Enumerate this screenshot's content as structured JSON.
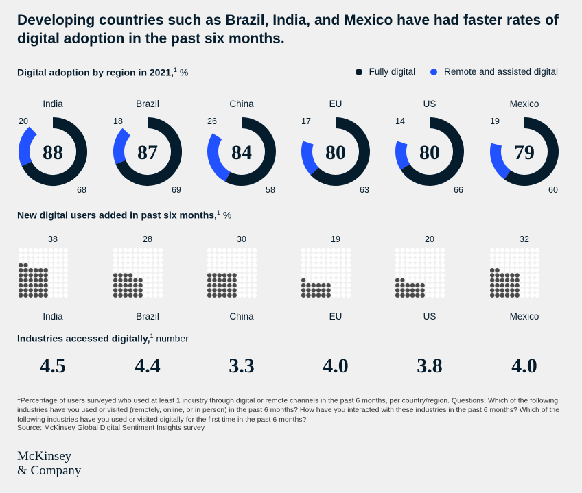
{
  "title": "Developing countries such as Brazil, India, and Mexico have had faster rates of digital adoption in the past six months.",
  "legend": {
    "fully_digital": "Fully digital",
    "remote_assisted": "Remote and assisted digital"
  },
  "colors": {
    "fully_digital": "#051c2c",
    "remote_assisted": "#2251ff",
    "dot_empty": "#ffffff",
    "dot_filled": "#4a4a4a"
  },
  "section1": {
    "label": "Digital adoption by region in 2021,",
    "sup": "1",
    "unit": "%"
  },
  "section2": {
    "label": "New digital users added in past six months,",
    "sup": "1",
    "unit": "%"
  },
  "section3": {
    "label": "Industries accessed digitally,",
    "sup": "1",
    "unit": "number"
  },
  "chart_data": [
    {
      "type": "pie",
      "title": "Digital adoption by region in 2021, %",
      "categories": [
        "India",
        "Brazil",
        "China",
        "EU",
        "US",
        "Mexico"
      ],
      "totals": [
        "88",
        "87",
        "84",
        "80",
        "80",
        "79"
      ],
      "series": [
        {
          "name": "Fully digital",
          "values": [
            68,
            69,
            58,
            63,
            66,
            60
          ]
        },
        {
          "name": "Remote and assisted digital",
          "values": [
            20,
            18,
            26,
            17,
            14,
            19
          ]
        }
      ]
    },
    {
      "type": "bar",
      "title": "New digital users added in past six months, %",
      "categories": [
        "India",
        "Brazil",
        "China",
        "EU",
        "US",
        "Mexico"
      ],
      "values": [
        38,
        28,
        30,
        19,
        20,
        32
      ]
    },
    {
      "type": "table",
      "title": "Industries accessed digitally, number",
      "categories": [
        "India",
        "Brazil",
        "China",
        "EU",
        "US",
        "Mexico"
      ],
      "values": [
        "4.5",
        "4.4",
        "3.3",
        "4.0",
        "3.8",
        "4.0"
      ]
    }
  ],
  "footnote": "Percentage of users surveyed who used at least 1 industry through digital or remote channels in the past 6 months, per country/region. Questions: Which of the following industries have you used or visited (remotely, online, or in person) in the past 6 months? How have you interacted with these industries in the past 6 months? Which of the following industries have you used or visited digitally for the first time in the past 6 months?",
  "footnote_mark": "1",
  "source": "Source: McKinsey Global Digital Sentiment Insights survey",
  "logo": {
    "line1": "McKinsey",
    "line2": "& Company"
  }
}
